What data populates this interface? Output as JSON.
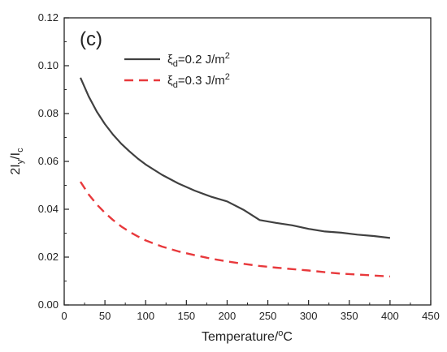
{
  "chart_data": {
    "type": "line",
    "panel_label": "(c)",
    "xlabel": {
      "main": "Temperature/",
      "sup": "o",
      "tail": "C"
    },
    "ylabel": {
      "prefix": "2I",
      "sub1": "y",
      "mid": "/I",
      "sub2": "c"
    },
    "xlim": [
      0,
      450
    ],
    "ylim": [
      0.0,
      0.12
    ],
    "xticks": [
      0,
      50,
      100,
      150,
      200,
      250,
      300,
      350,
      400,
      450
    ],
    "yticks": [
      0.0,
      0.02,
      0.04,
      0.06,
      0.08,
      0.1,
      0.12
    ],
    "xtick_labels": [
      "0",
      "50",
      "100",
      "150",
      "200",
      "250",
      "300",
      "350",
      "400",
      "450"
    ],
    "ytick_labels": [
      "0.00",
      "0.02",
      "0.04",
      "0.06",
      "0.08",
      "0.10",
      "0.12"
    ],
    "grid": false,
    "legend_position": "top-left",
    "x": [
      20,
      30,
      40,
      50,
      60,
      70,
      80,
      90,
      100,
      120,
      140,
      160,
      180,
      200,
      220,
      240,
      260,
      280,
      300,
      320,
      340,
      360,
      380,
      400
    ],
    "series": [
      {
        "legend": {
          "sym": "ξ",
          "sub": "d",
          "value": "=0.2 J/m",
          "sup": "2"
        },
        "color": "#404040",
        "dash": "solid",
        "values": [
          0.095,
          0.0872,
          0.0808,
          0.0756,
          0.0712,
          0.0674,
          0.0642,
          0.0613,
          0.0587,
          0.0544,
          0.0508,
          0.0478,
          0.0453,
          0.0433,
          0.0398,
          0.0355,
          0.0343,
          0.0333,
          0.0318,
          0.0307,
          0.0302,
          0.0294,
          0.0288,
          0.028
        ]
      },
      {
        "legend": {
          "sym": "ξ",
          "sub": "d",
          "value": "=0.3 J/m",
          "sup": "2"
        },
        "color": "#e8393c",
        "dash": "dashed",
        "values": [
          0.0515,
          0.0462,
          0.042,
          0.0385,
          0.0355,
          0.0328,
          0.0306,
          0.0287,
          0.027,
          0.0244,
          0.0224,
          0.0208,
          0.0194,
          0.0182,
          0.0172,
          0.0163,
          0.0156,
          0.015,
          0.0144,
          0.0137,
          0.0131,
          0.0127,
          0.0123,
          0.0119
        ]
      }
    ]
  }
}
